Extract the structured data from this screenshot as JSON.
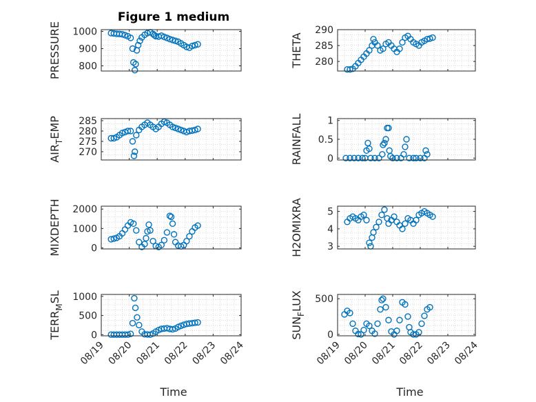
{
  "figure": {
    "title": "Figure 1 medium",
    "marker_color": "#0072BD",
    "axis_color": "#262626",
    "grid_color": "#d9d9d9",
    "x_tick_labels": [
      "08/19",
      "08/20",
      "08/21",
      "08/22",
      "08/23",
      "08/24"
    ],
    "x_label_left": "Time",
    "x_label_right": "Time"
  },
  "chart_data": [
    {
      "type": "scatter",
      "ylabel": "PRESSURE",
      "ylim": [
        770,
        1010
      ],
      "xlim": [
        0,
        5
      ],
      "yticks": [
        800,
        900,
        1000
      ],
      "ytick_labels": [
        "800",
        "900",
        "1000"
      ],
      "x": [
        0.35,
        0.45,
        0.55,
        0.65,
        0.75,
        0.85,
        0.95,
        1.05,
        1.12,
        1.15,
        1.2,
        1.23,
        1.27,
        1.32,
        1.38,
        1.45,
        1.55,
        1.65,
        1.75,
        1.85,
        1.9,
        1.95,
        2.05,
        2.15,
        2.25,
        2.35,
        2.45,
        2.55,
        2.65,
        2.75,
        2.85,
        2.95,
        3.05,
        3.15,
        3.25,
        3.35,
        3.45
      ],
      "y": [
        990,
        988,
        986,
        985,
        983,
        978,
        972,
        962,
        900,
        820,
        775,
        810,
        890,
        920,
        945,
        965,
        980,
        990,
        995,
        985,
        978,
        972,
        970,
        975,
        968,
        962,
        955,
        950,
        945,
        940,
        930,
        920,
        910,
        905,
        915,
        920,
        925
      ]
    },
    {
      "type": "scatter",
      "ylabel": "THETA",
      "ylim": [
        277,
        290
      ],
      "xlim": [
        0,
        5
      ],
      "yticks": [
        280,
        285,
        290
      ],
      "ytick_labels": [
        "280",
        "285",
        "290"
      ],
      "x": [
        0.35,
        0.45,
        0.55,
        0.65,
        0.75,
        0.85,
        0.95,
        1.05,
        1.15,
        1.25,
        1.3,
        1.35,
        1.45,
        1.55,
        1.65,
        1.75,
        1.85,
        1.95,
        2.05,
        2.15,
        2.25,
        2.35,
        2.45,
        2.55,
        2.65,
        2.75,
        2.85,
        2.95,
        3.05,
        3.15,
        3.25,
        3.35,
        3.45
      ],
      "y": [
        277.5,
        277.5,
        277.7,
        278.5,
        279.5,
        280.5,
        281.5,
        282.5,
        283.5,
        285,
        287,
        286,
        285,
        283.5,
        284,
        285.5,
        286,
        285,
        284,
        283,
        284,
        286,
        287.5,
        288,
        287,
        286,
        285.5,
        285,
        286,
        286.5,
        287,
        287.2,
        287.5
      ]
    },
    {
      "type": "scatter",
      "ylabel": "AIR_TEMP",
      "ylim": [
        266,
        286
      ],
      "xlim": [
        0,
        5
      ],
      "yticks": [
        270,
        275,
        280,
        285
      ],
      "ytick_labels": [
        "270",
        "275",
        "280",
        "285"
      ],
      "x": [
        0.35,
        0.45,
        0.55,
        0.65,
        0.75,
        0.85,
        0.95,
        1.05,
        1.12,
        1.17,
        1.2,
        1.25,
        1.35,
        1.45,
        1.55,
        1.65,
        1.75,
        1.85,
        1.95,
        2.05,
        2.15,
        2.25,
        2.35,
        2.45,
        2.55,
        2.65,
        2.75,
        2.85,
        2.95,
        3.05,
        3.15,
        3.25,
        3.35,
        3.45
      ],
      "y": [
        276.5,
        276.5,
        277,
        278,
        279,
        279.5,
        280,
        280,
        275,
        268,
        270,
        278,
        280.5,
        282,
        283,
        284,
        283,
        282,
        281,
        282,
        283.5,
        284.5,
        284,
        283,
        282,
        281.5,
        281,
        280.5,
        280,
        279.5,
        280,
        280.2,
        280.5,
        281
      ]
    },
    {
      "type": "scatter",
      "ylabel": "RAINFALL",
      "ylim": [
        -0.05,
        1.05
      ],
      "xlim": [
        0,
        5
      ],
      "yticks": [
        0,
        0.5,
        1
      ],
      "ytick_labels": [
        "0",
        "0.5",
        "1"
      ],
      "x": [
        0.3,
        0.45,
        0.6,
        0.75,
        0.9,
        1.0,
        1.05,
        1.1,
        1.15,
        1.2,
        1.35,
        1.5,
        1.62,
        1.65,
        1.7,
        1.75,
        1.8,
        1.85,
        1.88,
        1.92,
        2.0,
        2.15,
        2.3,
        2.4,
        2.45,
        2.5,
        2.6,
        2.75,
        2.85,
        3.0,
        3.15,
        3.2,
        3.25
      ],
      "y": [
        0,
        0,
        0,
        0,
        0,
        0,
        0.2,
        0.4,
        0.25,
        0,
        0,
        0,
        0.1,
        0.35,
        0.4,
        0.5,
        0.8,
        0.8,
        0.2,
        0.05,
        0,
        0,
        0,
        0.1,
        0.3,
        0.5,
        0,
        0,
        0,
        0,
        0,
        0.2,
        0.1
      ]
    },
    {
      "type": "scatter",
      "ylabel": "MIXDEPTH",
      "ylim": [
        -50,
        2150
      ],
      "xlim": [
        0,
        5
      ],
      "yticks": [
        0,
        1000,
        2000
      ],
      "ytick_labels": [
        "0",
        "1000",
        "2000"
      ],
      "x": [
        0.35,
        0.45,
        0.55,
        0.65,
        0.75,
        0.85,
        0.95,
        1.05,
        1.15,
        1.25,
        1.35,
        1.45,
        1.55,
        1.6,
        1.65,
        1.7,
        1.75,
        1.85,
        1.95,
        2.05,
        2.15,
        2.25,
        2.35,
        2.45,
        2.5,
        2.55,
        2.6,
        2.65,
        2.75,
        2.85,
        2.95,
        3.05,
        3.15,
        3.25,
        3.35,
        3.45
      ],
      "y": [
        450,
        480,
        520,
        600,
        750,
        950,
        1150,
        1320,
        1250,
        900,
        300,
        50,
        200,
        500,
        850,
        1200,
        900,
        350,
        100,
        50,
        150,
        400,
        800,
        1650,
        1600,
        1250,
        700,
        300,
        120,
        80,
        150,
        350,
        600,
        850,
        1050,
        1150
      ]
    },
    {
      "type": "scatter",
      "ylabel": "H2OMIXRA",
      "ylim": [
        2.85,
        5.3
      ],
      "xlim": [
        0,
        5
      ],
      "yticks": [
        3,
        4,
        5
      ],
      "ytick_labels": [
        "3",
        "4",
        "5"
      ],
      "x": [
        0.35,
        0.45,
        0.55,
        0.65,
        0.75,
        0.85,
        0.95,
        1.05,
        1.15,
        1.2,
        1.25,
        1.3,
        1.4,
        1.5,
        1.6,
        1.7,
        1.8,
        1.85,
        1.95,
        2.05,
        2.15,
        2.25,
        2.35,
        2.45,
        2.55,
        2.65,
        2.75,
        2.85,
        2.95,
        3.05,
        3.15,
        3.25,
        3.35,
        3.45
      ],
      "y": [
        4.4,
        4.6,
        4.7,
        4.6,
        4.5,
        4.7,
        4.8,
        4.5,
        3.2,
        3.0,
        3.5,
        3.8,
        4.1,
        4.4,
        4.8,
        5.1,
        4.6,
        4.3,
        4.5,
        4.7,
        4.4,
        4.2,
        4.0,
        4.3,
        4.6,
        4.5,
        4.3,
        4.5,
        4.8,
        4.9,
        5.0,
        4.9,
        4.8,
        4.7
      ]
    },
    {
      "type": "scatter",
      "ylabel": "TERR_MSL",
      "ylim": [
        -30,
        1050
      ],
      "xlim": [
        0,
        5
      ],
      "yticks": [
        0,
        500,
        1000
      ],
      "ytick_labels": [
        "0",
        "500",
        "1000"
      ],
      "x": [
        0.35,
        0.45,
        0.55,
        0.65,
        0.75,
        0.85,
        0.95,
        1.05,
        1.12,
        1.18,
        1.22,
        1.28,
        1.35,
        1.45,
        1.55,
        1.65,
        1.75,
        1.85,
        1.95,
        2.05,
        2.15,
        2.25,
        2.35,
        2.45,
        2.55,
        2.65,
        2.75,
        2.85,
        2.95,
        3.05,
        3.15,
        3.25,
        3.35,
        3.45
      ],
      "y": [
        0,
        0,
        0,
        0,
        0,
        0,
        0,
        20,
        300,
        950,
        700,
        450,
        250,
        80,
        10,
        5,
        0,
        30,
        80,
        120,
        150,
        160,
        170,
        150,
        140,
        160,
        200,
        230,
        260,
        280,
        290,
        300,
        310,
        320
      ]
    },
    {
      "type": "scatter",
      "ylabel": "SUN_FLUX",
      "ylim": [
        -20,
        560
      ],
      "xlim": [
        0,
        5
      ],
      "yticks": [
        0,
        500
      ],
      "ytick_labels": [
        "0",
        "500"
      ],
      "x": [
        0.25,
        0.35,
        0.45,
        0.55,
        0.65,
        0.75,
        0.85,
        0.95,
        1.05,
        1.15,
        1.25,
        1.35,
        1.45,
        1.55,
        1.6,
        1.65,
        1.75,
        1.85,
        1.95,
        2.05,
        2.15,
        2.25,
        2.35,
        2.45,
        2.55,
        2.6,
        2.65,
        2.75,
        2.85,
        2.95,
        3.05,
        3.15,
        3.25,
        3.35
      ],
      "y": [
        280,
        330,
        300,
        150,
        50,
        5,
        0,
        60,
        150,
        120,
        50,
        10,
        150,
        350,
        480,
        500,
        380,
        200,
        40,
        0,
        50,
        200,
        450,
        420,
        250,
        100,
        30,
        0,
        0,
        30,
        150,
        260,
        350,
        380
      ]
    }
  ]
}
